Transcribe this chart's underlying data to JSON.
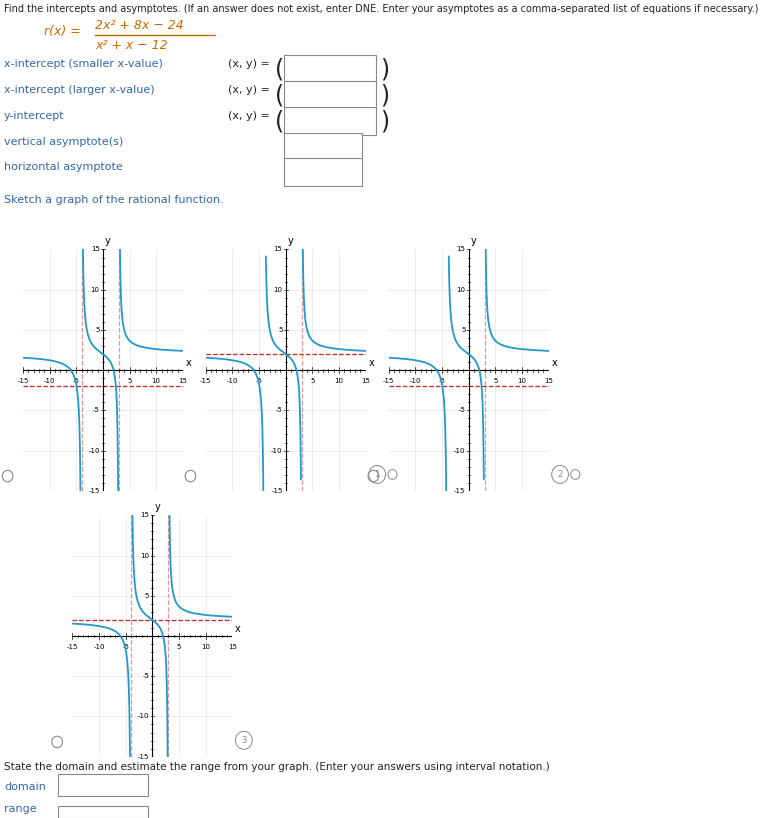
{
  "title_text": "Find the intercepts and asymptotes. (If an answer does not exist, enter DNE. Enter your asymptotes as a comma-separated list of equations if necessary.)",
  "numerator_text": "2x² + 8x − 24",
  "denominator_text": "x² + x − 12",
  "rx_label": "r(x) =",
  "form_labels": [
    "x-intercept (smaller x-value)",
    "x-intercept (larger x-value)",
    "y-intercept",
    "vertical asymptote(s)",
    "horizontal asymptote"
  ],
  "xy_eq": "(x, y) =",
  "sketch_label": "Sketch a graph of the rational function.",
  "state_label": "State the domain and estimate the range from your graph. (Enter your answers using interval notation.)",
  "domain_label": "domain",
  "range_label": "range",
  "tc": "#222222",
  "oc": "#CC6600",
  "bc": "#3366AA",
  "rc": "#CC2222",
  "vc": "#DD9999",
  "cc": "#2299CC",
  "va1": -4,
  "va2": 3,
  "ha": 2,
  "xlim": [
    -15,
    15
  ],
  "ylim": [
    -15,
    15
  ],
  "graphs": [
    {
      "ha_y": -2,
      "va_list": [
        -4,
        3
      ],
      "show_ha": true
    },
    {
      "ha_y": 2,
      "va_list": [
        3
      ],
      "show_ha": true
    },
    {
      "ha_y": -2,
      "va_list": [
        3
      ],
      "show_ha": true
    },
    {
      "ha_y": 2,
      "va_list": [
        -4,
        3
      ],
      "show_ha": true
    }
  ]
}
